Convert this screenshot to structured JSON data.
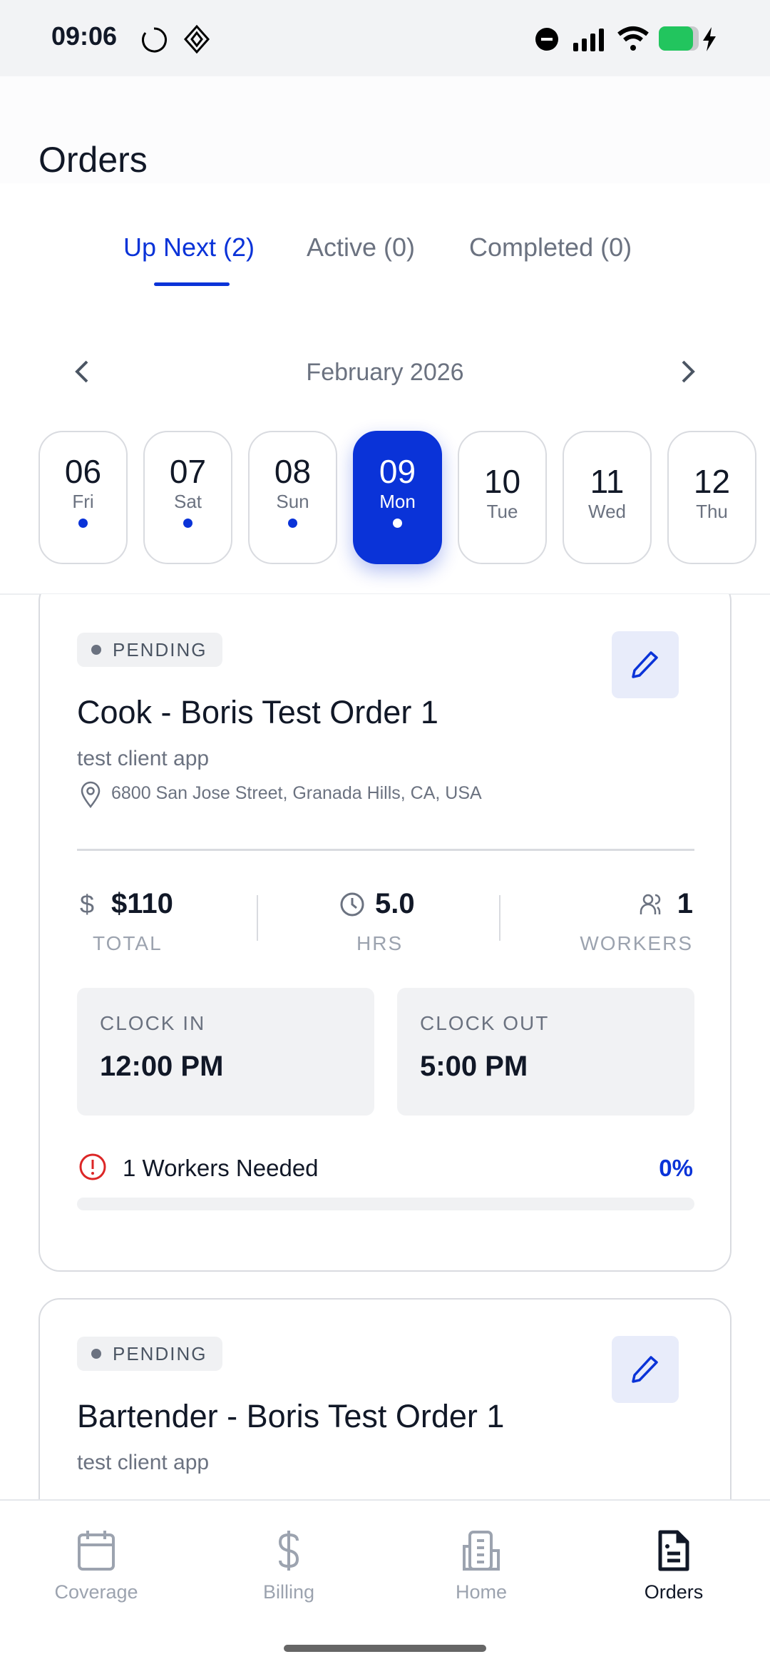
{
  "status_bar": {
    "time": "09:06",
    "battery_color": "#22c55e"
  },
  "header": {
    "title": "Orders"
  },
  "tabs": [
    {
      "label": "Up Next (2)",
      "active": true
    },
    {
      "label": "Active (0)",
      "active": false
    },
    {
      "label": "Completed (0)",
      "active": false
    }
  ],
  "calendar": {
    "month": "February 2026",
    "days": [
      {
        "num": "06",
        "wd": "Fri",
        "dot": true,
        "selected": false
      },
      {
        "num": "07",
        "wd": "Sat",
        "dot": true,
        "selected": false
      },
      {
        "num": "08",
        "wd": "Sun",
        "dot": true,
        "selected": false
      },
      {
        "num": "09",
        "wd": "Mon",
        "dot": true,
        "selected": true
      },
      {
        "num": "10",
        "wd": "Tue",
        "dot": false,
        "selected": false
      },
      {
        "num": "11",
        "wd": "Wed",
        "dot": false,
        "selected": false
      },
      {
        "num": "12",
        "wd": "Thu",
        "dot": false,
        "selected": false
      }
    ]
  },
  "orders": [
    {
      "status": "PENDING",
      "title": "Cook - Boris Test Order 1",
      "client": "test client app",
      "address": "6800 San Jose Street, Granada Hills, CA, USA",
      "total": "$110",
      "total_label": "TOTAL",
      "hours": "5.0",
      "hours_label": "HRS",
      "workers": "1",
      "workers_label": "WORKERS",
      "clock_in_label": "CLOCK IN",
      "clock_in": "12:00 PM",
      "clock_out_label": "CLOCK OUT",
      "clock_out": "5:00 PM",
      "needed": "1 Workers Needed",
      "fill_percent": "0%",
      "fill_fraction": 0
    },
    {
      "status": "PENDING",
      "title": "Bartender - Boris Test Order 1",
      "client": "test client app"
    }
  ],
  "bottom_nav": [
    {
      "label": "Coverage",
      "icon": "calendar-icon"
    },
    {
      "label": "Billing",
      "icon": "dollar-icon"
    },
    {
      "label": "Home",
      "icon": "building-icon"
    },
    {
      "label": "Orders",
      "icon": "document-icon",
      "active": true
    }
  ],
  "colors": {
    "accent": "#0a33d8",
    "warning": "#dc2626"
  }
}
